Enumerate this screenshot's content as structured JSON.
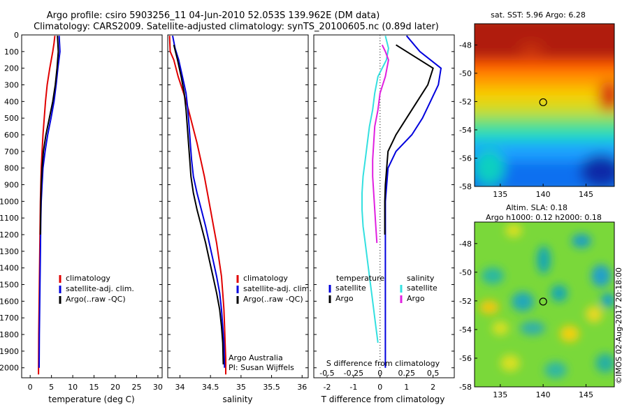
{
  "title": {
    "line1": "Argo profile: csiro 5903256_11 04-Jun-2010 52.053S 139.962E (DM data)",
    "line2": "Climatology: CARS2009. Satellite-adjusted climatology: synTS_20100605.nc (0.89d later)"
  },
  "colors": {
    "climatology": "#e00000",
    "satellite": "#0000dd",
    "argo": "#000000",
    "s_satellite": "#33e0e0",
    "s_argo": "#e020e0"
  },
  "chart_data": [
    {
      "type": "line",
      "id": "temperature",
      "xlabel": "temperature (deg C)",
      "ylabel": "",
      "xlim": [
        -2,
        31
      ],
      "ylim": [
        2060,
        0
      ],
      "xticks": [
        0,
        5,
        10,
        15,
        20,
        25,
        30
      ],
      "yticks": [
        0,
        100,
        200,
        300,
        400,
        500,
        600,
        700,
        800,
        900,
        1000,
        1100,
        1200,
        1300,
        1400,
        1500,
        1600,
        1700,
        1800,
        1900,
        2000
      ],
      "legend": [
        "climatology",
        "satellite-adj. clim.",
        "Argo(..raw -QC)"
      ],
      "series": [
        {
          "name": "climatology",
          "x": [
            5.8,
            5.6,
            5.3,
            4.6,
            4.0,
            3.6,
            3.3,
            3.0,
            2.8,
            2.6,
            2.5,
            2.4,
            2.35,
            2.3,
            2.25,
            2.2,
            2.15,
            2.1,
            2.05,
            2.0,
            1.95
          ],
          "y": [
            5,
            50,
            100,
            200,
            300,
            400,
            500,
            600,
            700,
            800,
            900,
            1000,
            1100,
            1200,
            1300,
            1400,
            1500,
            1600,
            1700,
            1800,
            2040
          ]
        },
        {
          "name": "satellite-adj. clim.",
          "x": [
            6.8,
            6.9,
            7.0,
            6.5,
            6.1,
            5.6,
            4.9,
            4.1,
            3.5,
            3.0,
            2.8,
            2.6,
            2.5,
            2.45,
            2.4,
            2.35,
            2.3,
            2.25,
            2.2,
            2.15,
            2.1
          ],
          "y": [
            5,
            50,
            100,
            200,
            300,
            400,
            500,
            600,
            700,
            800,
            900,
            1000,
            1100,
            1200,
            1300,
            1400,
            1500,
            1600,
            1700,
            1800,
            2000
          ]
        },
        {
          "name": "Argo(..raw -QC)",
          "x": [
            6.4,
            6.5,
            6.6,
            6.3,
            5.9,
            5.3,
            4.5,
            3.7,
            3.1,
            2.8,
            2.6,
            2.5,
            2.45,
            2.4
          ],
          "y": [
            5,
            50,
            100,
            200,
            300,
            400,
            500,
            600,
            700,
            800,
            900,
            1000,
            1100,
            1200
          ]
        }
      ]
    },
    {
      "type": "line",
      "id": "salinity",
      "xlabel": "salinity",
      "ylabel": "",
      "xlim": [
        33.8,
        36.1
      ],
      "ylim": [
        2060,
        0
      ],
      "xticks": [
        34,
        34.5,
        35,
        35.5,
        36
      ],
      "legend": [
        "climatology",
        "satellite-adj. clim.",
        "Argo(..raw -QC)"
      ],
      "annotation": [
        "Argo Australia",
        "PI: Susan Wijffels"
      ],
      "series": [
        {
          "name": "climatology",
          "x": [
            33.83,
            33.84,
            33.9,
            33.97,
            34.06,
            34.14,
            34.21,
            34.28,
            34.34,
            34.4,
            34.45,
            34.5,
            34.55,
            34.6,
            34.64,
            34.68,
            34.7,
            34.72,
            34.73,
            34.74,
            34.75,
            34.75
          ],
          "y": [
            5,
            100,
            150,
            250,
            350,
            450,
            550,
            650,
            750,
            850,
            950,
            1050,
            1150,
            1250,
            1350,
            1450,
            1550,
            1650,
            1750,
            1850,
            1950,
            2040
          ]
        },
        {
          "name": "satellite-adj. clim.",
          "x": [
            33.88,
            33.92,
            33.98,
            34.04,
            34.1,
            34.13,
            34.15,
            34.17,
            34.19,
            34.22,
            34.28,
            34.35,
            34.42,
            34.48,
            34.54,
            34.6,
            34.65,
            34.68,
            34.7,
            34.72,
            34.73
          ],
          "y": [
            5,
            80,
            150,
            250,
            350,
            450,
            550,
            650,
            750,
            850,
            950,
            1050,
            1150,
            1250,
            1350,
            1450,
            1550,
            1650,
            1750,
            1850,
            2000
          ]
        },
        {
          "name": "Argo(..raw -QC)",
          "x": [
            33.9,
            33.96,
            34.02,
            34.07,
            34.1,
            34.12,
            34.14,
            34.16,
            34.18,
            34.22,
            34.28,
            34.35,
            34.42,
            34.48,
            34.54,
            34.6,
            34.65,
            34.68,
            34.7,
            34.71
          ],
          "y": [
            60,
            150,
            250,
            350,
            450,
            550,
            650,
            750,
            850,
            950,
            1050,
            1150,
            1250,
            1350,
            1450,
            1550,
            1650,
            1750,
            1850,
            1980
          ]
        }
      ]
    },
    {
      "type": "line",
      "id": "difference",
      "xlabel": "T difference from climatology",
      "x2label": "S difference from climatology",
      "xlim": [
        -2.5,
        2.8
      ],
      "x2lim": [
        -0.625,
        0.7
      ],
      "ylim": [
        2060,
        0
      ],
      "xticks": [
        -2,
        -1,
        0,
        1,
        2
      ],
      "x2ticks": [
        -0.5,
        -0.25,
        0,
        0.25,
        0.5
      ],
      "legend_temperature_header": "temperature",
      "legend_salinity_header": "salinity",
      "legend": [
        "satellite",
        "Argo",
        "satellite",
        "Argo"
      ],
      "series": [
        {
          "name": "satellite",
          "variable": "temperature",
          "x": [
            1.0,
            1.5,
            2.3,
            2.2,
            1.9,
            1.6,
            1.2,
            0.6,
            0.3,
            0.25,
            0.2,
            0.2,
            0.2,
            0.2,
            0.2,
            0.2,
            0.2
          ],
          "y": [
            5,
            100,
            200,
            300,
            400,
            500,
            600,
            700,
            800,
            900,
            1000,
            1200,
            1400,
            1600,
            1800,
            1900,
            2000
          ]
        },
        {
          "name": "Argo",
          "variable": "temperature",
          "x": [
            0.6,
            1.0,
            2.0,
            1.8,
            1.4,
            1.0,
            0.6,
            0.3,
            0.25,
            0.2,
            0.18,
            0.18,
            0.18,
            0.18
          ],
          "y": [
            60,
            100,
            200,
            300,
            400,
            500,
            600,
            700,
            800,
            900,
            1000,
            1100,
            1150,
            1200
          ]
        },
        {
          "name": "satellite",
          "variable": "salinity",
          "x": [
            0.05,
            0.08,
            0.06,
            -0.02,
            -0.05,
            -0.07,
            -0.1,
            -0.12,
            -0.14,
            -0.16,
            -0.17,
            -0.17,
            -0.16,
            -0.14,
            -0.12,
            -0.1,
            -0.08,
            -0.06,
            -0.04,
            -0.02
          ],
          "y": [
            5,
            80,
            150,
            250,
            350,
            450,
            550,
            650,
            750,
            850,
            950,
            1050,
            1150,
            1250,
            1350,
            1450,
            1550,
            1650,
            1750,
            1850
          ]
        },
        {
          "name": "Argo",
          "variable": "salinity",
          "x": [
            0.02,
            0.05,
            0.08,
            0.05,
            0.0,
            -0.02,
            -0.05,
            -0.06,
            -0.07,
            -0.07,
            -0.06,
            -0.05,
            -0.04,
            -0.03
          ],
          "y": [
            60,
            100,
            150,
            250,
            350,
            450,
            550,
            650,
            750,
            850,
            950,
            1050,
            1150,
            1250
          ]
        }
      ]
    },
    {
      "type": "heatmap",
      "id": "sst_map",
      "title": "sat. SST: 5.96 Argo: 6.28",
      "xlim": [
        132,
        148.3
      ],
      "ylim": [
        -58,
        -46.5
      ],
      "xticks": [
        135,
        140,
        145
      ],
      "yticks": [
        -48,
        -50,
        -52,
        -54,
        -56,
        -58
      ],
      "marker": {
        "lon": 140,
        "lat": -52.05
      }
    },
    {
      "type": "heatmap",
      "id": "sla_map",
      "title_line1": "Altim. SLA: 0.18",
      "title_line2": "Argo h1000: 0.12 h2000: 0.18",
      "xlim": [
        132,
        148.3
      ],
      "ylim": [
        -58,
        -46.5
      ],
      "xticks": [
        135,
        140,
        145
      ],
      "yticks": [
        -48,
        -50,
        -52,
        -54,
        -56,
        -58
      ],
      "marker": {
        "lon": 140,
        "lat": -52.05
      }
    }
  ],
  "credit": "©IMOS 02-Aug-2017 20:18:00"
}
